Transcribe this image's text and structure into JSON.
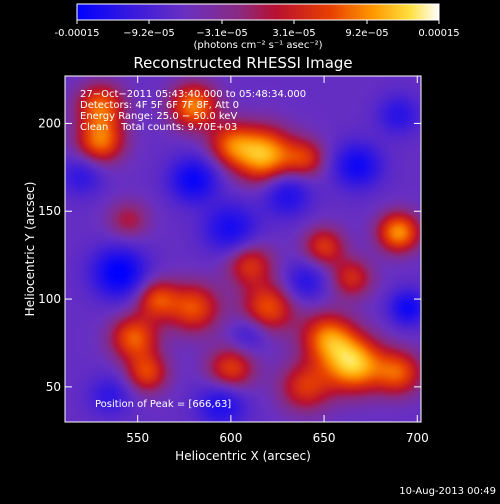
{
  "chart_data": {
    "type": "heatmap",
    "title": "Reconstructed RHESSI Image",
    "xlabel": "Heliocentric X (arcsec)",
    "ylabel": "Heliocentric Y (arcsec)",
    "xlim": [
      511,
      702
    ],
    "ylim": [
      30,
      227
    ],
    "x_ticks": [
      550,
      600,
      650,
      700
    ],
    "y_ticks": [
      50,
      100,
      150,
      200
    ],
    "colorbar": {
      "range": [
        -0.00015,
        0.00015
      ],
      "tick_labels": [
        "-0.00015",
        "−9.2e−05",
        "−3.1e−05",
        "3.1e−05",
        "9.2e−05",
        "0.00015"
      ],
      "unit_label": "(photons cm⁻² s⁻¹ asec⁻²)",
      "colors": [
        "#0000ff",
        "#4a1fd0",
        "#7a3cb0",
        "#b01040",
        "#e03000",
        "#ff8c00",
        "#ffd200",
        "#ffffff"
      ]
    },
    "annotations": [
      "27−Oct−2011 05:43:40.000 to 05:48:34.000",
      "Detectors: 4F 5F 6F 7F 8F, Att 0",
      "Energy Range: 25.0 − 50.0 keV",
      "Clean    Total counts: 9.70E+03"
    ],
    "peak_label": "Position of Peak = [666,63]",
    "peak": [
      666,
      63
    ],
    "grid": false,
    "blobs": [
      {
        "x": 666,
        "y": 63,
        "v": 1.0,
        "s": 11
      },
      {
        "x": 652,
        "y": 78,
        "v": 0.75,
        "s": 10
      },
      {
        "x": 690,
        "y": 58,
        "v": 0.65,
        "s": 9
      },
      {
        "x": 640,
        "y": 50,
        "v": 0.55,
        "s": 10
      },
      {
        "x": 620,
        "y": 95,
        "v": 0.65,
        "s": 10
      },
      {
        "x": 580,
        "y": 95,
        "v": 0.65,
        "s": 10
      },
      {
        "x": 560,
        "y": 100,
        "v": 0.6,
        "s": 8
      },
      {
        "x": 548,
        "y": 78,
        "v": 0.7,
        "s": 9
      },
      {
        "x": 555,
        "y": 58,
        "v": 0.6,
        "s": 8
      },
      {
        "x": 600,
        "y": 60,
        "v": 0.6,
        "s": 9
      },
      {
        "x": 610,
        "y": 120,
        "v": 0.55,
        "s": 9
      },
      {
        "x": 618,
        "y": 182,
        "v": 0.95,
        "s": 11
      },
      {
        "x": 600,
        "y": 188,
        "v": 0.6,
        "s": 9
      },
      {
        "x": 640,
        "y": 180,
        "v": 0.5,
        "s": 8
      },
      {
        "x": 580,
        "y": 210,
        "v": 0.8,
        "s": 9
      },
      {
        "x": 530,
        "y": 190,
        "v": 0.75,
        "s": 9
      },
      {
        "x": 530,
        "y": 210,
        "v": 0.7,
        "s": 9
      },
      {
        "x": 690,
        "y": 138,
        "v": 0.85,
        "s": 8
      },
      {
        "x": 650,
        "y": 130,
        "v": 0.55,
        "s": 8
      },
      {
        "x": 665,
        "y": 112,
        "v": 0.5,
        "s": 8
      },
      {
        "x": 545,
        "y": 145,
        "v": 0.35,
        "s": 8
      },
      {
        "x": 540,
        "y": 115,
        "v": -0.75,
        "s": 10
      },
      {
        "x": 580,
        "y": 168,
        "v": -0.65,
        "s": 9
      },
      {
        "x": 600,
        "y": 140,
        "v": -0.55,
        "s": 10
      },
      {
        "x": 668,
        "y": 176,
        "v": -0.6,
        "s": 9
      },
      {
        "x": 630,
        "y": 160,
        "v": -0.5,
        "s": 9
      },
      {
        "x": 695,
        "y": 95,
        "v": -0.6,
        "s": 7
      },
      {
        "x": 595,
        "y": 40,
        "v": -0.5,
        "s": 9
      },
      {
        "x": 640,
        "y": 110,
        "v": -0.4,
        "s": 8
      },
      {
        "x": 520,
        "y": 170,
        "v": -0.35,
        "s": 8
      },
      {
        "x": 610,
        "y": 80,
        "v": -0.3,
        "s": 7
      },
      {
        "x": 690,
        "y": 205,
        "v": -0.4,
        "s": 8
      },
      {
        "x": 535,
        "y": 45,
        "v": -0.35,
        "s": 8
      }
    ],
    "baseline": -0.28
  },
  "footer": {
    "timestamp": "10-Aug-2013 00:49"
  }
}
